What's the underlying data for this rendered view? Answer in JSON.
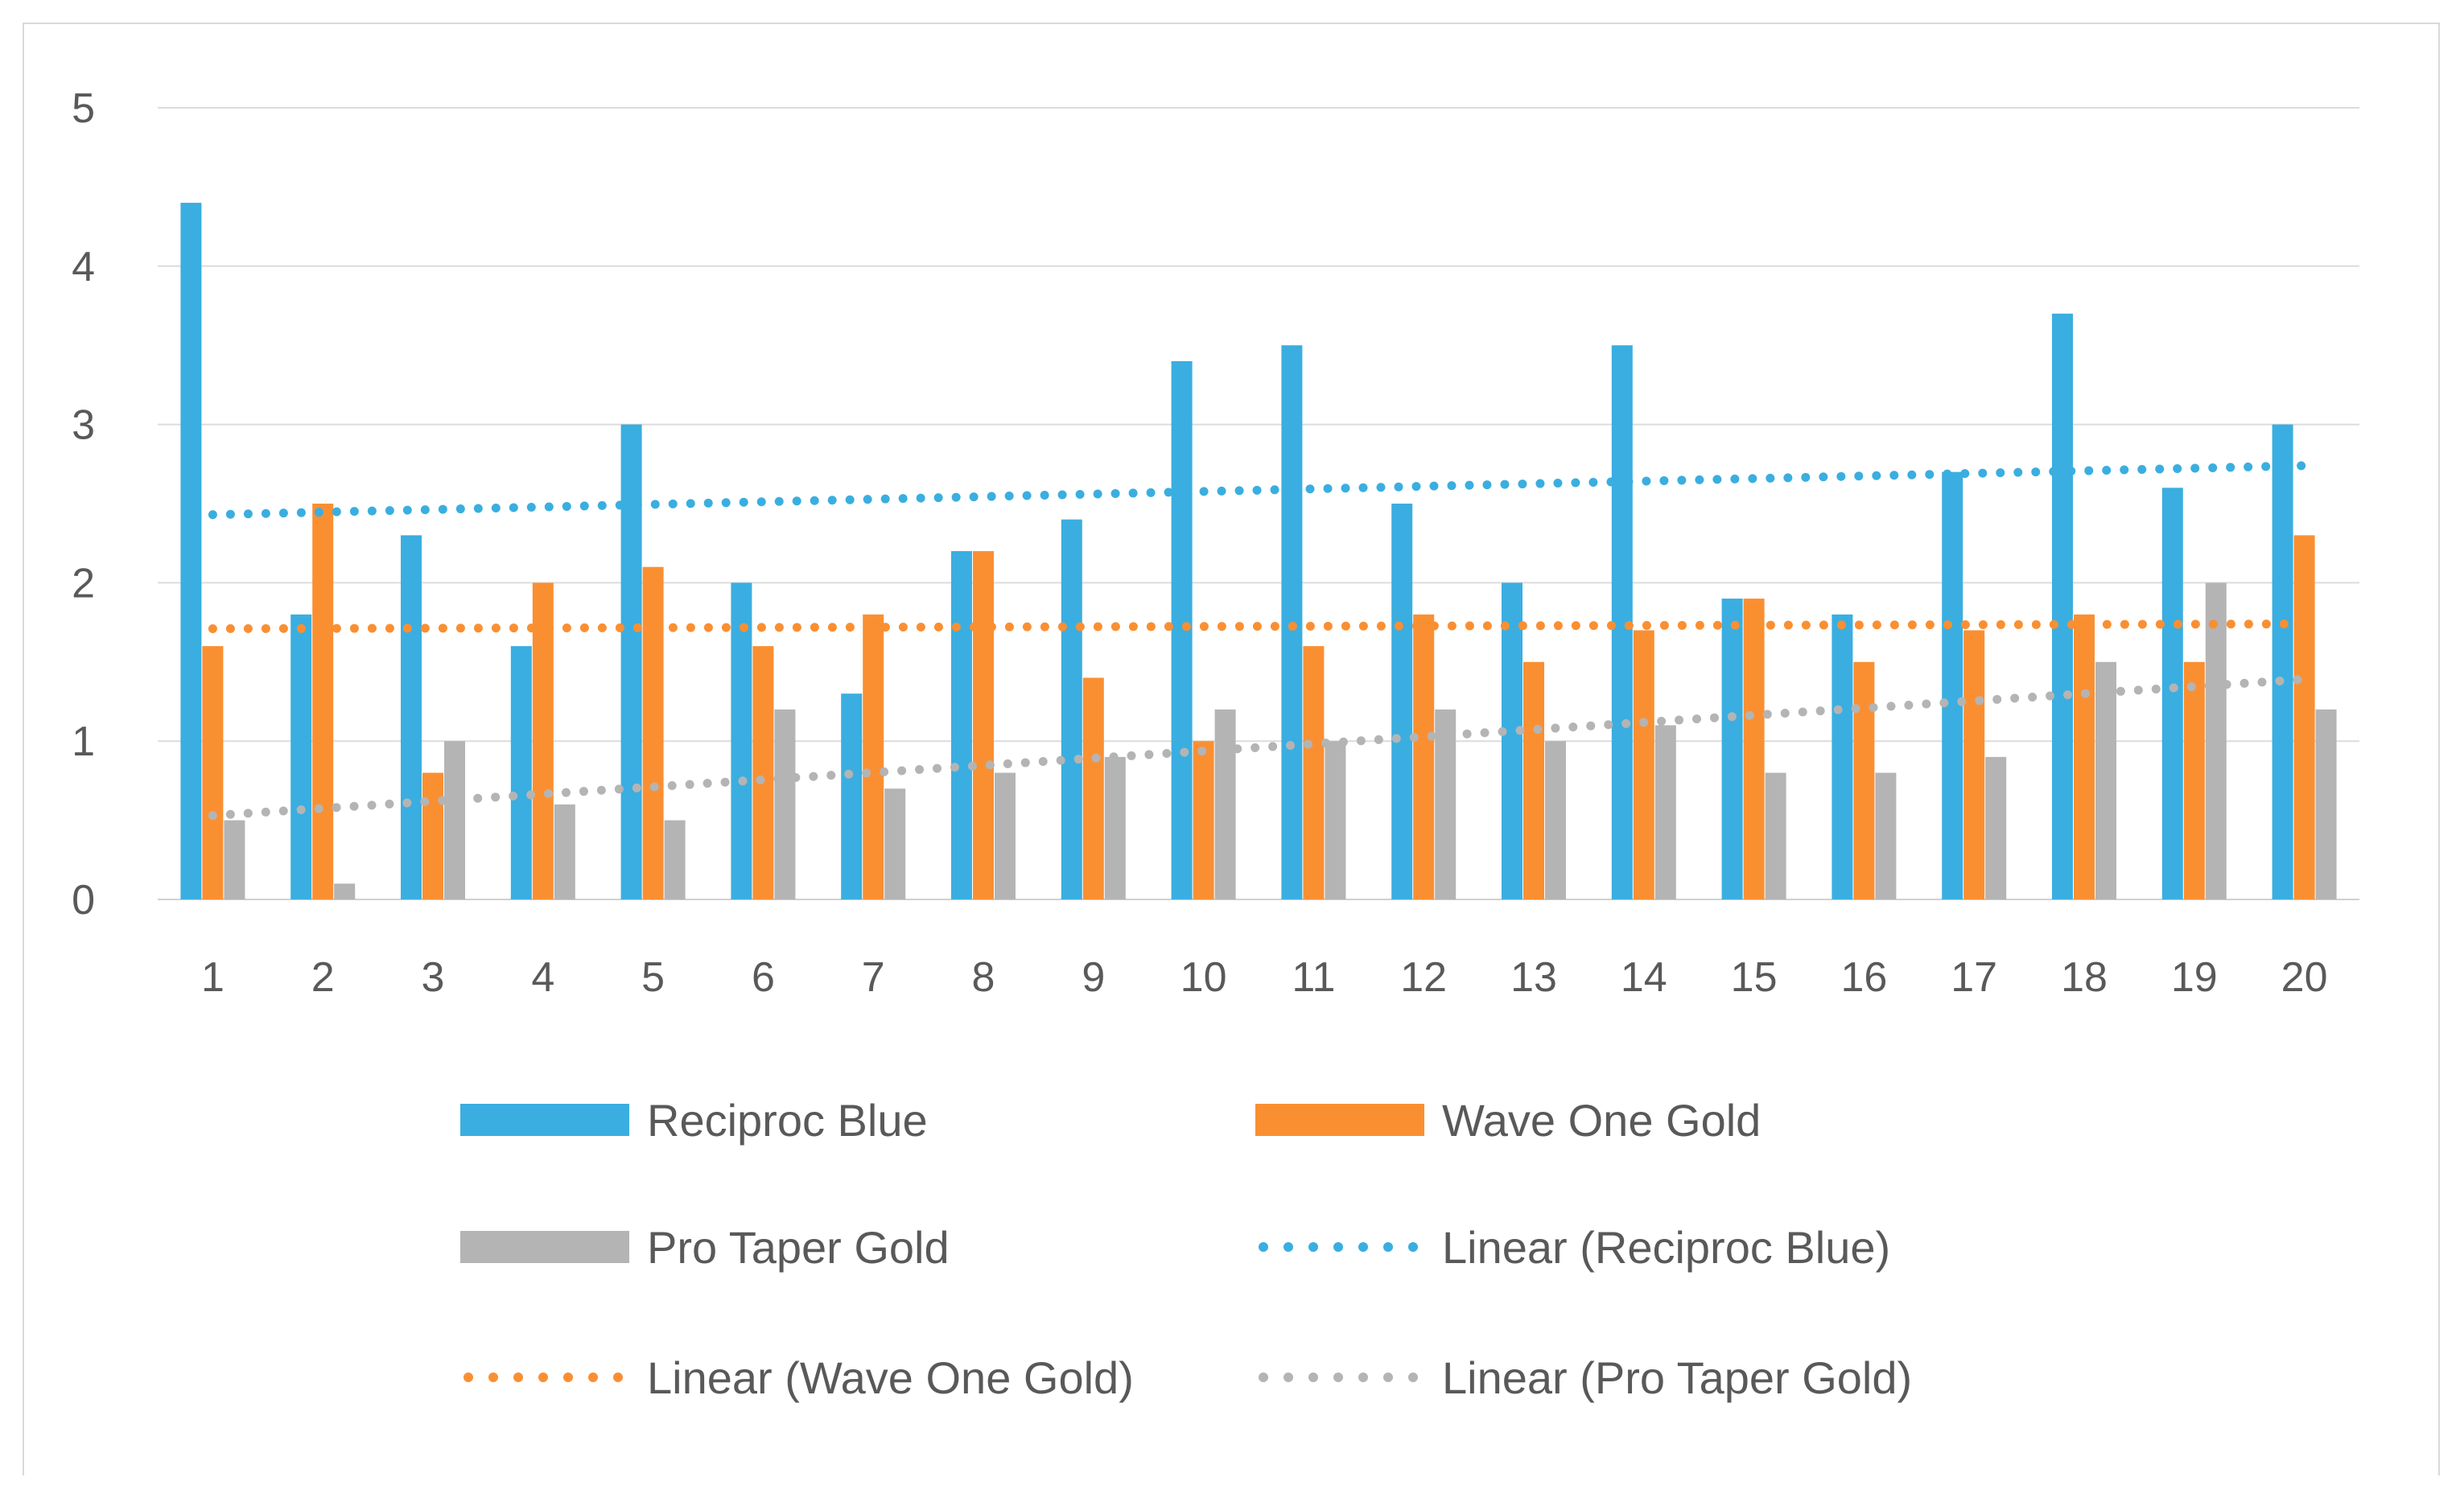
{
  "chart_data": {
    "type": "bar",
    "title": "",
    "xlabel": "",
    "ylabel": "",
    "ylim": [
      0,
      5
    ],
    "y_ticks": [
      "0",
      "1",
      "2",
      "3",
      "4",
      "5"
    ],
    "categories": [
      "1",
      "2",
      "3",
      "4",
      "5",
      "6",
      "7",
      "8",
      "9",
      "10",
      "11",
      "12",
      "13",
      "14",
      "15",
      "16",
      "17",
      "18",
      "19",
      "20"
    ],
    "grid": "horizontal",
    "legend_position": "bottom",
    "series": [
      {
        "name": "Reciproc Blue",
        "color": "#3aaee0",
        "values": [
          4.4,
          1.8,
          2.3,
          1.6,
          3.0,
          2.0,
          1.3,
          2.2,
          2.4,
          3.4,
          3.5,
          2.5,
          2.0,
          3.5,
          1.9,
          1.8,
          2.7,
          3.7,
          2.6,
          3.0
        ]
      },
      {
        "name": "Wave One Gold",
        "color": "#fa8f32",
        "values": [
          1.6,
          2.5,
          0.8,
          2.0,
          2.1,
          1.6,
          1.8,
          2.2,
          1.4,
          1.0,
          1.6,
          1.8,
          1.5,
          1.7,
          1.9,
          1.5,
          1.7,
          1.8,
          1.5,
          2.3
        ]
      },
      {
        "name": "Pro Taper Gold",
        "color": "#b4b4b4",
        "values": [
          0.5,
          0.1,
          1.0,
          0.6,
          0.5,
          1.2,
          0.7,
          0.8,
          0.9,
          1.2,
          1.0,
          1.2,
          1.0,
          1.1,
          0.8,
          0.8,
          0.9,
          1.5,
          2.0,
          1.2
        ]
      }
    ],
    "trendlines": [
      {
        "name": "Linear (Reciproc Blue)",
        "color": "#3aaee0",
        "start": 2.43,
        "end": 2.74
      },
      {
        "name": "Linear (Wave One Gold)",
        "color": "#fa8f32",
        "start": 1.71,
        "end": 1.74
      },
      {
        "name": "Linear (Pro Taper Gold)",
        "color": "#b4b4b4",
        "start": 0.53,
        "end": 1.39
      }
    ]
  }
}
